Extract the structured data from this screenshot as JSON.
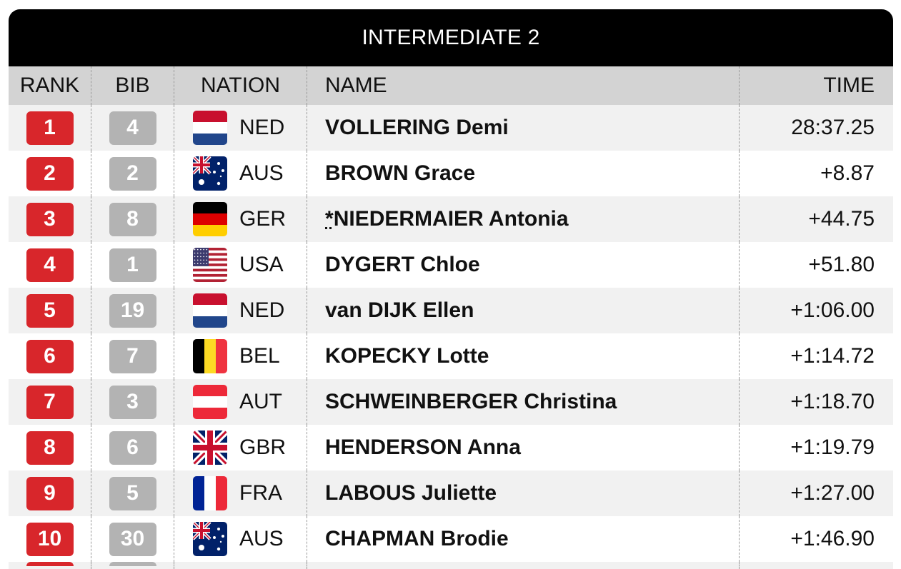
{
  "title": "INTERMEDIATE 2",
  "headers": {
    "rank": "RANK",
    "bib": "BIB",
    "nation": "NATION",
    "name": "NAME",
    "time": "TIME"
  },
  "rows": [
    {
      "rank": "1",
      "bib": "4",
      "nation": "NED",
      "flag": "ned-flag-icon",
      "name": "VOLLERING Demi",
      "time": "28:37.25"
    },
    {
      "rank": "2",
      "bib": "2",
      "nation": "AUS",
      "flag": "aus-flag-icon",
      "name": "BROWN Grace",
      "time": "+8.87"
    },
    {
      "rank": "3",
      "bib": "8",
      "nation": "GER",
      "flag": "ger-flag-icon",
      "marker": "*",
      "name": "NIEDERMAIER Antonia",
      "time": "+44.75"
    },
    {
      "rank": "4",
      "bib": "1",
      "nation": "USA",
      "flag": "usa-flag-icon",
      "name": "DYGERT Chloe",
      "time": "+51.80"
    },
    {
      "rank": "5",
      "bib": "19",
      "nation": "NED",
      "flag": "ned-flag-icon",
      "name": "van DIJK Ellen",
      "time": "+1:06.00"
    },
    {
      "rank": "6",
      "bib": "7",
      "nation": "BEL",
      "flag": "bel-flag-icon",
      "name": "KOPECKY Lotte",
      "time": "+1:14.72"
    },
    {
      "rank": "7",
      "bib": "3",
      "nation": "AUT",
      "flag": "aut-flag-icon",
      "name": "SCHWEINBERGER Christina",
      "time": "+1:18.70"
    },
    {
      "rank": "8",
      "bib": "6",
      "nation": "GBR",
      "flag": "gbr-flag-icon",
      "name": "HENDERSON Anna",
      "time": "+1:19.79"
    },
    {
      "rank": "9",
      "bib": "5",
      "nation": "FRA",
      "flag": "fra-flag-icon",
      "name": "LABOUS Juliette",
      "time": "+1:27.00"
    },
    {
      "rank": "10",
      "bib": "30",
      "nation": "AUS",
      "flag": "aus-flag-icon",
      "name": "CHAPMAN Brodie",
      "time": "+1:46.90"
    }
  ],
  "colors": {
    "rank_badge": "#d8262b",
    "bib_badge": "#b3b3b3",
    "title_bar": "#000000",
    "header_bg": "#d3d3d3",
    "row_alt": "#f1f1f1"
  }
}
